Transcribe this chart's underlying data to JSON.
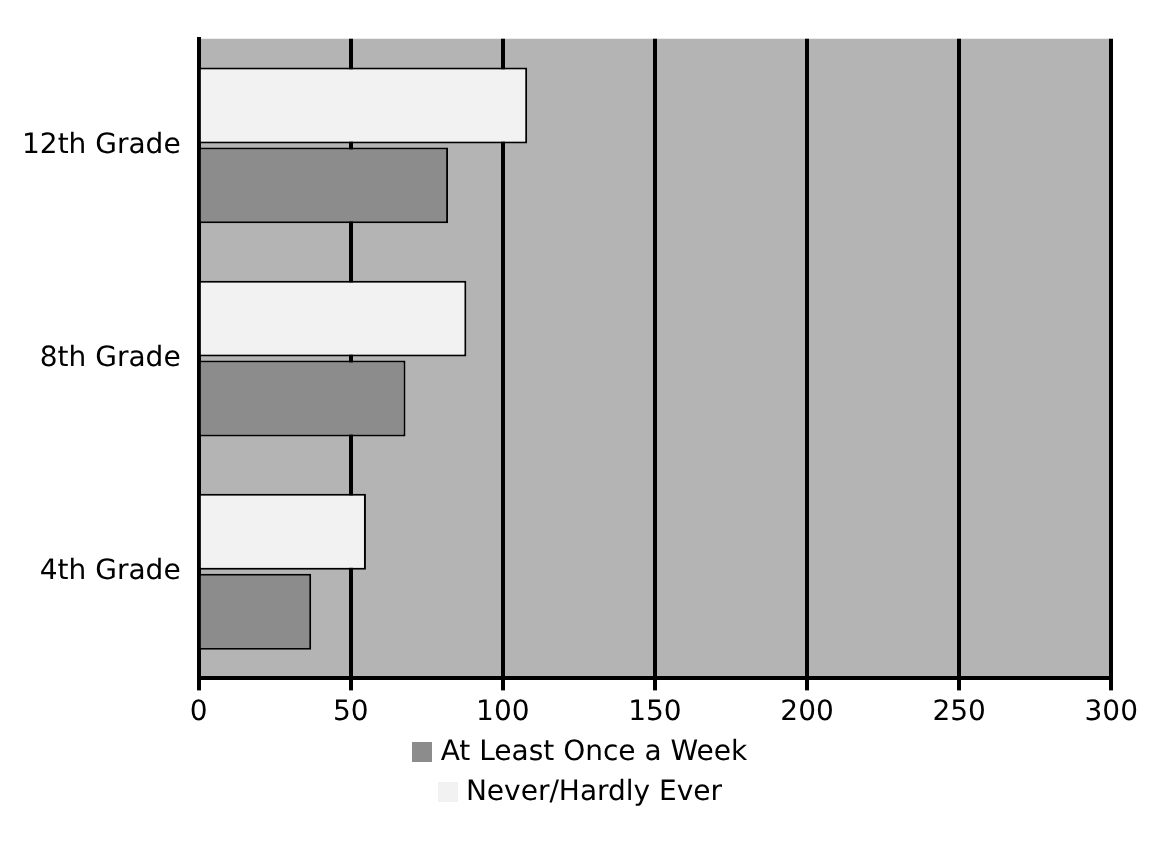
{
  "chart_data": {
    "type": "bar",
    "orientation": "horizontal",
    "categories": [
      "12th Grade",
      "8th Grade",
      "4th Grade"
    ],
    "series": [
      {
        "name": "At Least Once a Week",
        "color": "#8c8c8c",
        "values": [
          82,
          68,
          37
        ]
      },
      {
        "name": "Never/Hardly Ever",
        "color": "#f2f2f2",
        "values": [
          108,
          88,
          55
        ]
      }
    ],
    "xlim": [
      0,
      300
    ],
    "xticks": [
      0,
      50,
      100,
      150,
      200,
      250,
      300
    ],
    "grid": "x",
    "legend": "bottom"
  }
}
